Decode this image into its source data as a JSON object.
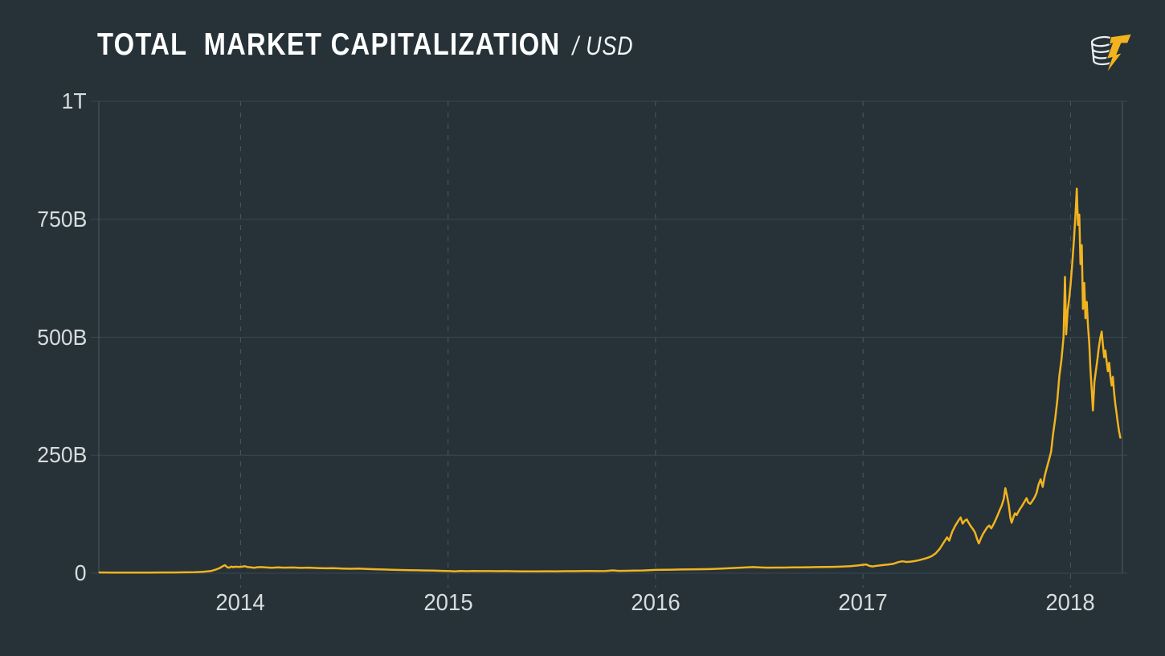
{
  "header": {
    "logo_icon": "coin-stack-with-lightning-bolt"
  },
  "chart_data": {
    "type": "line",
    "title": "TOTAL  MARKET CAPITALIZATION",
    "unit_suffix": "/ USD",
    "xlabel": "",
    "ylabel": "",
    "legend": "none",
    "grid": {
      "horizontal": "solid",
      "vertical": "dashed-at-year-marks"
    },
    "colors": {
      "background": "#263238",
      "line": "#F2B31E",
      "grid_solid": "#3B474F",
      "grid_dashed": "#4D5860",
      "axis_border": "#4D5860",
      "tick_text": "#D7DCDE",
      "title_text": "#FFFFFF",
      "logo_coin_outline": "#ECEFF0",
      "logo_bolt": "#F2B31E"
    },
    "x_axis": {
      "range": [
        2013.317,
        2018.25
      ],
      "unit": "year",
      "ticks": [
        {
          "value": 2014,
          "label": "2014"
        },
        {
          "value": 2015,
          "label": "2015"
        },
        {
          "value": 2016,
          "label": "2016"
        },
        {
          "value": 2017,
          "label": "2017"
        },
        {
          "value": 2018,
          "label": "2018"
        }
      ]
    },
    "y_axis": {
      "range": [
        0,
        1000
      ],
      "unit": "billions USD",
      "ticks": [
        {
          "value": 0,
          "label": "0"
        },
        {
          "value": 250,
          "label": "250B"
        },
        {
          "value": 500,
          "label": "500B"
        },
        {
          "value": 750,
          "label": "750B"
        },
        {
          "value": 1000,
          "label": "1T"
        }
      ]
    },
    "series": [
      {
        "name": "Total Market Capitalization (USD)",
        "value_unit": "billion USD",
        "points": [
          [
            2013.32,
            1.5
          ],
          [
            2013.38,
            1.3
          ],
          [
            2013.44,
            1.2
          ],
          [
            2013.5,
            1.3
          ],
          [
            2013.56,
            1.4
          ],
          [
            2013.62,
            1.5
          ],
          [
            2013.68,
            1.6
          ],
          [
            2013.73,
            1.8
          ],
          [
            2013.78,
            2.2
          ],
          [
            2013.82,
            3
          ],
          [
            2013.855,
            4.5
          ],
          [
            2013.88,
            7.5
          ],
          [
            2013.9,
            11
          ],
          [
            2013.915,
            15
          ],
          [
            2013.925,
            17
          ],
          [
            2013.935,
            13
          ],
          [
            2013.945,
            11.5
          ],
          [
            2013.955,
            14
          ],
          [
            2013.965,
            12.8
          ],
          [
            2013.975,
            13.8
          ],
          [
            2013.99,
            13.2
          ],
          [
            2014.005,
            13.6
          ],
          [
            2014.02,
            14.8
          ],
          [
            2014.035,
            13
          ],
          [
            2014.05,
            12.2
          ],
          [
            2014.065,
            11.4
          ],
          [
            2014.08,
            12.6
          ],
          [
            2014.1,
            12.9
          ],
          [
            2014.12,
            12.2
          ],
          [
            2014.15,
            11.6
          ],
          [
            2014.18,
            12.4
          ],
          [
            2014.21,
            11.8
          ],
          [
            2014.25,
            12.1
          ],
          [
            2014.29,
            11.3
          ],
          [
            2014.33,
            11.7
          ],
          [
            2014.37,
            10.9
          ],
          [
            2014.41,
            10.4
          ],
          [
            2014.45,
            10.7
          ],
          [
            2014.49,
            9.9
          ],
          [
            2014.53,
            9.4
          ],
          [
            2014.57,
            9.7
          ],
          [
            2014.61,
            8.9
          ],
          [
            2014.65,
            8.3
          ],
          [
            2014.69,
            7.8
          ],
          [
            2014.73,
            7.3
          ],
          [
            2014.77,
            6.8
          ],
          [
            2014.81,
            6.4
          ],
          [
            2014.85,
            6.1
          ],
          [
            2014.89,
            5.8
          ],
          [
            2014.93,
            5.4
          ],
          [
            2014.97,
            5
          ],
          [
            2015.01,
            4.4
          ],
          [
            2015.035,
            3.7
          ],
          [
            2015.06,
            4.7
          ],
          [
            2015.09,
            4.3
          ],
          [
            2015.12,
            4.6
          ],
          [
            2015.16,
            4.4
          ],
          [
            2015.2,
            4.5
          ],
          [
            2015.24,
            4.2
          ],
          [
            2015.28,
            4.4
          ],
          [
            2015.32,
            4.1
          ],
          [
            2015.36,
            4
          ],
          [
            2015.4,
            3.9
          ],
          [
            2015.44,
            4
          ],
          [
            2015.48,
            4.1
          ],
          [
            2015.52,
            4
          ],
          [
            2015.56,
            4.2
          ],
          [
            2015.6,
            4.3
          ],
          [
            2015.64,
            4.4
          ],
          [
            2015.68,
            4.6
          ],
          [
            2015.72,
            4.5
          ],
          [
            2015.76,
            4.7
          ],
          [
            2015.795,
            6
          ],
          [
            2015.82,
            4.9
          ],
          [
            2015.86,
            5.1
          ],
          [
            2015.9,
            5.4
          ],
          [
            2015.94,
            5.8
          ],
          [
            2015.97,
            6.4
          ],
          [
            2016,
            7
          ],
          [
            2016.04,
            7.2
          ],
          [
            2016.08,
            7.5
          ],
          [
            2016.12,
            7.8
          ],
          [
            2016.16,
            8.1
          ],
          [
            2016.2,
            8.3
          ],
          [
            2016.24,
            8.6
          ],
          [
            2016.28,
            9.1
          ],
          [
            2016.32,
            9.8
          ],
          [
            2016.36,
            10.6
          ],
          [
            2016.4,
            11.5
          ],
          [
            2016.44,
            12.4
          ],
          [
            2016.47,
            13
          ],
          [
            2016.5,
            12.2
          ],
          [
            2016.54,
            11.7
          ],
          [
            2016.58,
            11.9
          ],
          [
            2016.62,
            12
          ],
          [
            2016.66,
            12.2
          ],
          [
            2016.7,
            12.4
          ],
          [
            2016.74,
            12.6
          ],
          [
            2016.78,
            12.9
          ],
          [
            2016.82,
            13.1
          ],
          [
            2016.86,
            13.5
          ],
          [
            2016.9,
            14.1
          ],
          [
            2016.94,
            15
          ],
          [
            2016.97,
            16.2
          ],
          [
            2017,
            17.7
          ],
          [
            2017.015,
            18.6
          ],
          [
            2017.03,
            15.5
          ],
          [
            2017.045,
            14.3
          ],
          [
            2017.06,
            15.4
          ],
          [
            2017.08,
            16.4
          ],
          [
            2017.1,
            17.3
          ],
          [
            2017.12,
            18.2
          ],
          [
            2017.145,
            19.8
          ],
          [
            2017.17,
            23.5
          ],
          [
            2017.19,
            25.2
          ],
          [
            2017.21,
            23.8
          ],
          [
            2017.23,
            24.6
          ],
          [
            2017.25,
            25.8
          ],
          [
            2017.27,
            27.6
          ],
          [
            2017.29,
            30
          ],
          [
            2017.31,
            32.5
          ],
          [
            2017.33,
            36
          ],
          [
            2017.35,
            42
          ],
          [
            2017.37,
            52
          ],
          [
            2017.39,
            66
          ],
          [
            2017.405,
            76
          ],
          [
            2017.415,
            69
          ],
          [
            2017.43,
            88
          ],
          [
            2017.445,
            101
          ],
          [
            2017.46,
            112
          ],
          [
            2017.47,
            118
          ],
          [
            2017.48,
            105
          ],
          [
            2017.49,
            111
          ],
          [
            2017.5,
            114
          ],
          [
            2017.51,
            106
          ],
          [
            2017.52,
            99
          ],
          [
            2017.53,
            93
          ],
          [
            2017.54,
            86
          ],
          [
            2017.55,
            72
          ],
          [
            2017.558,
            63
          ],
          [
            2017.568,
            74
          ],
          [
            2017.578,
            83
          ],
          [
            2017.588,
            90
          ],
          [
            2017.598,
            97
          ],
          [
            2017.608,
            101
          ],
          [
            2017.618,
            95
          ],
          [
            2017.628,
            103
          ],
          [
            2017.638,
            112
          ],
          [
            2017.648,
            122
          ],
          [
            2017.658,
            133
          ],
          [
            2017.668,
            143
          ],
          [
            2017.678,
            157
          ],
          [
            2017.686,
            180
          ],
          [
            2017.694,
            164
          ],
          [
            2017.702,
            145
          ],
          [
            2017.71,
            118
          ],
          [
            2017.716,
            107
          ],
          [
            2017.724,
            118
          ],
          [
            2017.732,
            127
          ],
          [
            2017.74,
            123
          ],
          [
            2017.748,
            130
          ],
          [
            2017.756,
            136
          ],
          [
            2017.764,
            141
          ],
          [
            2017.772,
            147
          ],
          [
            2017.78,
            153
          ],
          [
            2017.788,
            159
          ],
          [
            2017.796,
            150
          ],
          [
            2017.806,
            147
          ],
          [
            2017.816,
            153
          ],
          [
            2017.826,
            160
          ],
          [
            2017.836,
            170
          ],
          [
            2017.846,
            188
          ],
          [
            2017.856,
            199
          ],
          [
            2017.866,
            183
          ],
          [
            2017.876,
            207
          ],
          [
            2017.886,
            224
          ],
          [
            2017.896,
            240
          ],
          [
            2017.906,
            257
          ],
          [
            2017.916,
            295
          ],
          [
            2017.926,
            327
          ],
          [
            2017.936,
            365
          ],
          [
            2017.946,
            418
          ],
          [
            2017.956,
            452
          ],
          [
            2017.966,
            500
          ],
          [
            2017.973,
            628
          ],
          [
            2017.979,
            506
          ],
          [
            2017.986,
            556
          ],
          [
            2017.993,
            580
          ],
          [
            2018,
            610
          ],
          [
            2018.008,
            655
          ],
          [
            2018.016,
            705
          ],
          [
            2018.024,
            760
          ],
          [
            2018.03,
            815
          ],
          [
            2018.036,
            738
          ],
          [
            2018.042,
            760
          ],
          [
            2018.048,
            655
          ],
          [
            2018.054,
            695
          ],
          [
            2018.06,
            560
          ],
          [
            2018.066,
            615
          ],
          [
            2018.072,
            540
          ],
          [
            2018.078,
            575
          ],
          [
            2018.084,
            525
          ],
          [
            2018.09,
            488
          ],
          [
            2018.096,
            432
          ],
          [
            2018.102,
            388
          ],
          [
            2018.108,
            345
          ],
          [
            2018.115,
            405
          ],
          [
            2018.122,
            428
          ],
          [
            2018.129,
            452
          ],
          [
            2018.136,
            478
          ],
          [
            2018.143,
            498
          ],
          [
            2018.15,
            512
          ],
          [
            2018.156,
            484
          ],
          [
            2018.162,
            458
          ],
          [
            2018.168,
            472
          ],
          [
            2018.174,
            448
          ],
          [
            2018.18,
            428
          ],
          [
            2018.186,
            446
          ],
          [
            2018.192,
            418
          ],
          [
            2018.198,
            398
          ],
          [
            2018.204,
            416
          ],
          [
            2018.21,
            382
          ],
          [
            2018.216,
            358
          ],
          [
            2018.222,
            338
          ],
          [
            2018.228,
            318
          ],
          [
            2018.234,
            300
          ],
          [
            2018.24,
            287
          ]
        ]
      }
    ]
  }
}
